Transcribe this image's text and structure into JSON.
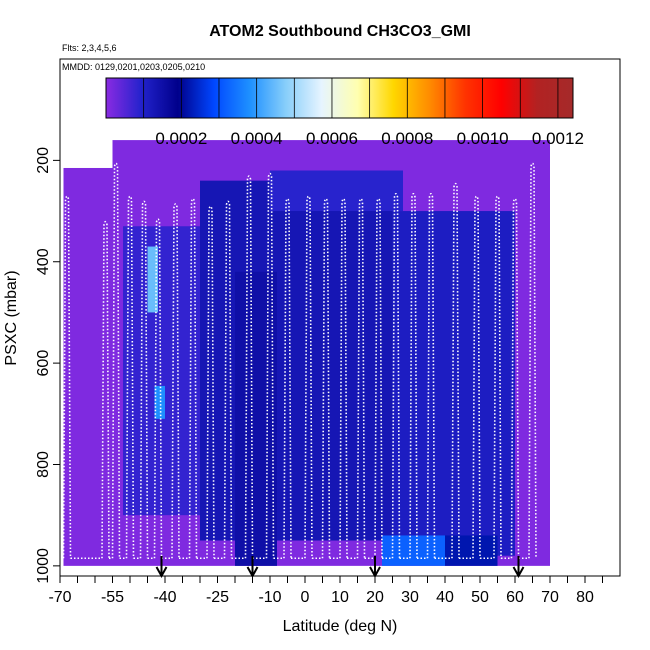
{
  "chart_data": {
    "type": "heatmap",
    "title": "ATOM2 Southbound CH3CO3_GMI",
    "subtitle_flights": "Flts: 2,3,4,5,6",
    "subtitle_dates": "MMDD: 0129,0201,0203,0205,0210",
    "xlabel": "Latitude (deg N)",
    "ylabel": "PSXC (mbar)",
    "xlim": [
      -70,
      90
    ],
    "ylim": [
      1020,
      0
    ],
    "xticks": [
      -70,
      -55,
      -40,
      -25,
      -10,
      0,
      10,
      20,
      30,
      40,
      50,
      60,
      70,
      80
    ],
    "xtick_labels": [
      "-70",
      "-55",
      "-40",
      "-25",
      "-10",
      "0",
      "10",
      "20",
      "30",
      "40",
      "50",
      "60",
      "70",
      "80"
    ],
    "xminor_ticks": [
      -65,
      -60,
      -50,
      -45,
      -35,
      -30,
      -20,
      -15,
      -5,
      5,
      15,
      25,
      35,
      45,
      55,
      65,
      75,
      85
    ],
    "yticks": [
      200,
      400,
      600,
      800,
      1000
    ],
    "ytick_labels": [
      "200",
      "400",
      "600",
      "800",
      "1000"
    ],
    "colorbar": {
      "range": [
        0,
        0.00124
      ],
      "ticks": [
        0.0002,
        0.0004,
        0.0006,
        0.0008,
        0.001,
        0.0012
      ],
      "tick_labels": [
        "0.0002",
        "0.0004",
        "0.0006",
        "0.0008",
        "0.0010",
        "0.0012"
      ],
      "colors": [
        "#8a2be2",
        "#2222cc",
        "#00008b",
        "#0047ff",
        "#1e90ff",
        "#87cefa",
        "#e6f4ff",
        "#ffffb0",
        "#ffd700",
        "#ff8c00",
        "#ff3300",
        "#ff0000",
        "#b22222",
        "#a52a2a"
      ]
    },
    "background_value": 1e-05,
    "field_regions": [
      {
        "lat": [
          -69,
          -55
        ],
        "p": [
          215,
          1000
        ],
        "value": 1e-05
      },
      {
        "lat": [
          -55,
          70
        ],
        "p": [
          160,
          1000
        ],
        "value": 1e-05
      },
      {
        "lat": [
          -52,
          -30
        ],
        "p": [
          330,
          900
        ],
        "value": 8e-05
      },
      {
        "lat": [
          -30,
          25
        ],
        "p": [
          240,
          950
        ],
        "value": 0.00013
      },
      {
        "lat": [
          -20,
          -8
        ],
        "p": [
          420,
          1000
        ],
        "value": 0.00015
      },
      {
        "lat": [
          25,
          60
        ],
        "p": [
          300,
          980
        ],
        "value": 0.00011
      },
      {
        "lat": [
          -45,
          -42
        ],
        "p": [
          370,
          500
        ],
        "value": 0.00045
      },
      {
        "lat": [
          -43,
          -40
        ],
        "p": [
          645,
          710
        ],
        "value": 0.00038
      },
      {
        "lat": [
          22,
          40
        ],
        "p": [
          940,
          1000
        ],
        "value": 0.00032
      },
      {
        "lat": [
          40,
          55
        ],
        "p": [
          940,
          1000
        ],
        "value": 0.00022
      },
      {
        "lat": [
          -10,
          28
        ],
        "p": [
          220,
          300
        ],
        "value": 9e-05
      }
    ],
    "flight_track_note": "Vertical profile flight tracks drawn as white dotted lines",
    "profile_tops": [
      {
        "lat": -68,
        "top": 265
      },
      {
        "lat": -57,
        "top": 315
      },
      {
        "lat": -54,
        "top": 200
      },
      {
        "lat": -50,
        "top": 265
      },
      {
        "lat": -46,
        "top": 275
      },
      {
        "lat": -42,
        "top": 310
      },
      {
        "lat": -37,
        "top": 280
      },
      {
        "lat": -32,
        "top": 270
      },
      {
        "lat": -27,
        "top": 285
      },
      {
        "lat": -22,
        "top": 275
      },
      {
        "lat": -16,
        "top": 225
      },
      {
        "lat": -10,
        "top": 220
      },
      {
        "lat": -5,
        "top": 270
      },
      {
        "lat": 1,
        "top": 265
      },
      {
        "lat": 6,
        "top": 270
      },
      {
        "lat": 11,
        "top": 270
      },
      {
        "lat": 16,
        "top": 270
      },
      {
        "lat": 21,
        "top": 270
      },
      {
        "lat": 26,
        "top": 260
      },
      {
        "lat": 31,
        "top": 260
      },
      {
        "lat": 36,
        "top": 260
      },
      {
        "lat": 43,
        "top": 240
      },
      {
        "lat": 49,
        "top": 265
      },
      {
        "lat": 55,
        "top": 265
      },
      {
        "lat": 60,
        "top": 270
      },
      {
        "lat": 65,
        "top": 200
      }
    ],
    "arrow_markers": [
      {
        "lat": -41
      },
      {
        "lat": -15
      },
      {
        "lat": 20
      },
      {
        "lat": 61
      }
    ]
  }
}
